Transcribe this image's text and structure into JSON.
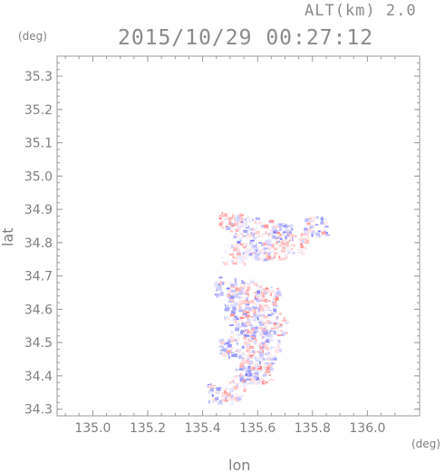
{
  "chart_data": {
    "type": "heatmap",
    "title": "2015/10/29 00:27:12",
    "subtitle": "ALT(km) 2.0",
    "xlabel": "lon",
    "ylabel": "lat",
    "xunit": "(deg)",
    "yunit": "(deg)",
    "xlim": [
      134.87,
      136.19
    ],
    "ylim": [
      34.28,
      35.36
    ],
    "xticks": [
      "135.0",
      "135.2",
      "135.4",
      "135.6",
      "135.8",
      "136.0"
    ],
    "yticks": [
      "34.3",
      "34.4",
      "34.5",
      "34.6",
      "34.7",
      "34.8",
      "34.9",
      "35.0",
      "35.1",
      "35.2",
      "35.3"
    ],
    "grid": false,
    "colors": {
      "positive": "#ff6666",
      "negative": "#6666ff",
      "axis": "#9a9a9a",
      "text": "#7f7f7f"
    },
    "clusters": [
      {
        "lon": 135.5,
        "lat": 34.87,
        "value": 0.7
      },
      {
        "lon": 135.56,
        "lat": 34.85,
        "value": -0.6
      },
      {
        "lon": 135.63,
        "lat": 34.84,
        "value": 0.5
      },
      {
        "lon": 135.68,
        "lat": 34.83,
        "value": -0.8
      },
      {
        "lon": 135.74,
        "lat": 34.8,
        "value": 0.4
      },
      {
        "lon": 135.81,
        "lat": 34.85,
        "value": -0.7
      },
      {
        "lon": 135.55,
        "lat": 34.8,
        "value": -0.5
      },
      {
        "lon": 135.51,
        "lat": 34.77,
        "value": 0.3
      },
      {
        "lon": 135.6,
        "lat": 34.78,
        "value": -0.7
      },
      {
        "lon": 135.66,
        "lat": 34.78,
        "value": 0.6
      },
      {
        "lon": 135.48,
        "lat": 34.67,
        "value": -0.6
      },
      {
        "lon": 135.53,
        "lat": 34.65,
        "value": 0.8
      },
      {
        "lon": 135.58,
        "lat": 34.66,
        "value": -0.5
      },
      {
        "lon": 135.63,
        "lat": 34.64,
        "value": 0.7
      },
      {
        "lon": 135.52,
        "lat": 34.6,
        "value": -0.7
      },
      {
        "lon": 135.57,
        "lat": 34.6,
        "value": 0.9
      },
      {
        "lon": 135.62,
        "lat": 34.59,
        "value": -0.6
      },
      {
        "lon": 135.66,
        "lat": 34.56,
        "value": 0.5
      },
      {
        "lon": 135.54,
        "lat": 34.54,
        "value": -0.8
      },
      {
        "lon": 135.59,
        "lat": 34.52,
        "value": 0.8
      },
      {
        "lon": 135.64,
        "lat": 34.51,
        "value": -0.6
      },
      {
        "lon": 135.5,
        "lat": 34.49,
        "value": -0.9
      },
      {
        "lon": 135.57,
        "lat": 34.46,
        "value": 0.7
      },
      {
        "lon": 135.62,
        "lat": 34.45,
        "value": -0.5
      },
      {
        "lon": 135.6,
        "lat": 34.41,
        "value": 0.6
      },
      {
        "lon": 135.55,
        "lat": 34.4,
        "value": -0.6
      },
      {
        "lon": 135.46,
        "lat": 34.35,
        "value": -0.7
      },
      {
        "lon": 135.51,
        "lat": 34.36,
        "value": 0.5
      }
    ]
  }
}
